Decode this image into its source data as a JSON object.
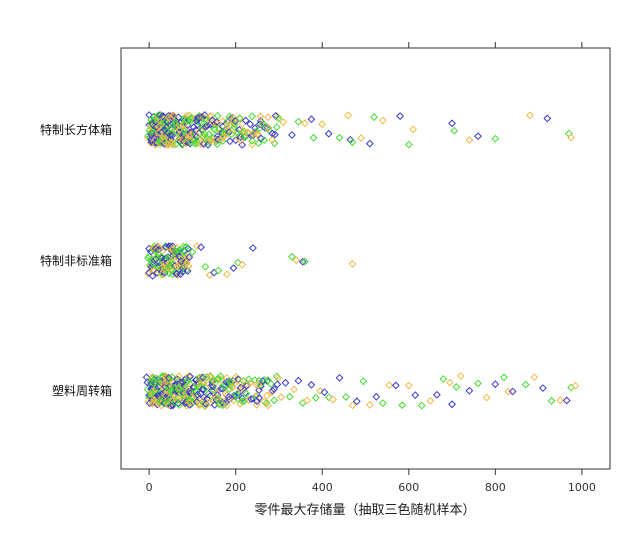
{
  "chart_data": {
    "type": "scatter",
    "subtype": "strip-plot-jittered",
    "title": "",
    "xlabel": "零件最大存储量（抽取三色随机样本）",
    "ylabel": "",
    "xlim": [
      -65,
      1065
    ],
    "xticks": [
      0,
      200,
      400,
      600,
      800,
      1000
    ],
    "xtick_labels": [
      "0",
      "200",
      "400",
      "600",
      "800",
      "1000"
    ],
    "grid": false,
    "marker": "open-diamond",
    "colors": [
      "#3a3acc",
      "#44dd33",
      "#f0b848"
    ],
    "categories": [
      "特制长方体箱",
      "特制非标准箱",
      "塑料周转箱"
    ],
    "series": [
      {
        "category": "特制长方体箱",
        "values": [
          0,
          2,
          4,
          5,
          7,
          9,
          10,
          12,
          14,
          15,
          17,
          19,
          20,
          22,
          24,
          25,
          27,
          29,
          30,
          32,
          34,
          35,
          37,
          39,
          40,
          42,
          44,
          45,
          47,
          49,
          50,
          53,
          55,
          58,
          60,
          62,
          65,
          68,
          70,
          72,
          75,
          78,
          80,
          83,
          85,
          88,
          90,
          93,
          95,
          98,
          100,
          103,
          106,
          110,
          113,
          116,
          120,
          123,
          126,
          130,
          134,
          138,
          142,
          146,
          150,
          154,
          158,
          162,
          166,
          170,
          175,
          180,
          185,
          190,
          195,
          200,
          205,
          210,
          215,
          220,
          228,
          236,
          244,
          250,
          258,
          266,
          275,
          285,
          295,
          310,
          330,
          345,
          360,
          375,
          380,
          400,
          415,
          440,
          460,
          465,
          470,
          490,
          510,
          520,
          540,
          580,
          600,
          610,
          700,
          705,
          740,
          760,
          800,
          880,
          920,
          970,
          975
        ],
        "count_shown": 117
      },
      {
        "category": "特制非标准箱",
        "values": [
          0,
          2,
          4,
          6,
          8,
          10,
          12,
          14,
          16,
          18,
          20,
          22,
          24,
          26,
          28,
          30,
          32,
          34,
          36,
          38,
          40,
          42,
          44,
          46,
          48,
          50,
          52,
          54,
          56,
          58,
          60,
          62,
          64,
          66,
          68,
          70,
          72,
          74,
          76,
          78,
          80,
          82,
          84,
          86,
          88,
          90,
          100,
          110,
          120,
          130,
          140,
          150,
          160,
          180,
          195,
          205,
          215,
          240,
          330,
          340,
          355,
          360,
          470
        ],
        "count_shown": 63
      },
      {
        "category": "塑料周转箱",
        "values": [
          0,
          2,
          4,
          5,
          7,
          9,
          10,
          12,
          14,
          15,
          17,
          19,
          20,
          22,
          24,
          25,
          27,
          29,
          30,
          32,
          34,
          35,
          37,
          39,
          40,
          42,
          44,
          45,
          47,
          49,
          50,
          53,
          55,
          58,
          60,
          62,
          65,
          68,
          70,
          72,
          75,
          78,
          80,
          83,
          85,
          88,
          90,
          93,
          95,
          98,
          100,
          103,
          106,
          110,
          113,
          116,
          120,
          123,
          126,
          130,
          134,
          138,
          142,
          146,
          150,
          154,
          158,
          162,
          166,
          170,
          175,
          180,
          185,
          190,
          195,
          200,
          205,
          210,
          215,
          220,
          228,
          236,
          244,
          250,
          258,
          266,
          275,
          285,
          295,
          305,
          315,
          325,
          335,
          345,
          355,
          365,
          375,
          385,
          395,
          405,
          415,
          425,
          440,
          455,
          470,
          480,
          495,
          510,
          525,
          540,
          555,
          570,
          585,
          600,
          615,
          630,
          650,
          665,
          680,
          695,
          700,
          710,
          720,
          740,
          760,
          780,
          800,
          820,
          830,
          840,
          870,
          890,
          910,
          930,
          950,
          965,
          975,
          985
        ],
        "count_shown": 138
      }
    ]
  }
}
